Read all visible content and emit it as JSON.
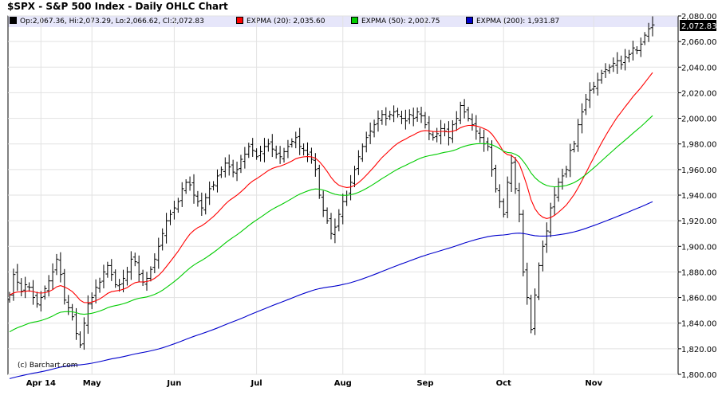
{
  "chart_data": {
    "type": "ohlc",
    "title": "$SPX - S&P 500 Index - Daily OHLC Chart",
    "source": "(c) Barchart.com",
    "ylim": [
      1800,
      2080
    ],
    "y_ticks": [
      "1,800.00",
      "1,820.00",
      "1,840.00",
      "1,860.00",
      "1,880.00",
      "1,900.00",
      "1,920.00",
      "1,940.00",
      "1,960.00",
      "1,980.00",
      "2,000.00",
      "2,020.00",
      "2,040.00",
      "2,060.00",
      "2,080.00"
    ],
    "y_tick_values": [
      1800,
      1820,
      1840,
      1860,
      1880,
      1900,
      1920,
      1940,
      1960,
      1980,
      2000,
      2020,
      2040,
      2060,
      2080
    ],
    "last_price": "2,072.83",
    "last_price_value": 2072.83,
    "x_months": [
      {
        "label": "Apr 14",
        "index": 8
      },
      {
        "label": "May",
        "index": 21
      },
      {
        "label": "Jun",
        "index": 42
      },
      {
        "label": "Jul",
        "index": 63
      },
      {
        "label": "Aug",
        "index": 85
      },
      {
        "label": "Sep",
        "index": 106
      },
      {
        "label": "Oct",
        "index": 126
      },
      {
        "label": "Nov",
        "index": 149
      }
    ],
    "legend": [
      {
        "label": "Op:2,067.36, Hi:2,073.29, Lo:2,066.62, Cl:2,072.83",
        "color": "#000000"
      },
      {
        "label": "EXPMA (20): 2,035.60",
        "color": "#ff0000"
      },
      {
        "label": "EXPMA (50): 2,002.75",
        "color": "#00cc00"
      },
      {
        "label": "EXPMA (200): 1,931.87",
        "color": "#0000cc"
      }
    ],
    "ohlc_close": [
      1862,
      1878,
      1872,
      1865,
      1870,
      1868,
      1860,
      1855,
      1860,
      1867,
      1873,
      1880,
      1890,
      1878,
      1858,
      1852,
      1845,
      1832,
      1823,
      1840,
      1855,
      1860,
      1868,
      1872,
      1880,
      1885,
      1878,
      1870,
      1870,
      1875,
      1880,
      1890,
      1888,
      1878,
      1872,
      1875,
      1882,
      1890,
      1900,
      1910,
      1920,
      1925,
      1930,
      1935,
      1945,
      1950,
      1948,
      1940,
      1935,
      1930,
      1938,
      1945,
      1948,
      1955,
      1960,
      1965,
      1962,
      1958,
      1960,
      1968,
      1972,
      1978,
      1975,
      1970,
      1974,
      1978,
      1980,
      1976,
      1972,
      1970,
      1974,
      1978,
      1982,
      1985,
      1978,
      1975,
      1972,
      1968,
      1960,
      1940,
      1928,
      1920,
      1910,
      1915,
      1925,
      1935,
      1940,
      1950,
      1960,
      1970,
      1978,
      1985,
      1990,
      1995,
      2000,
      2003,
      2000,
      2003,
      2005,
      2003,
      2000,
      1998,
      2003,
      2000,
      2005,
      2002,
      1995,
      1988,
      1985,
      1988,
      1992,
      1990,
      1985,
      1995,
      2000,
      2010,
      2005,
      2000,
      1995,
      1990,
      1985,
      1980,
      1978,
      1960,
      1945,
      1935,
      1925,
      1950,
      1965,
      1945,
      1925,
      1880,
      1860,
      1835,
      1862,
      1885,
      1900,
      1912,
      1930,
      1940,
      1950,
      1955,
      1960,
      1975,
      1980,
      1995,
      2005,
      2015,
      2022,
      2025,
      2030,
      2035,
      2038,
      2040,
      2043,
      2045,
      2042,
      2048,
      2050,
      2055,
      2053,
      2058,
      2065,
      2070,
      2073
    ],
    "series": [
      {
        "name": "EXPMA (20)",
        "color": "#ff0000",
        "last": 2035.6
      },
      {
        "name": "EXPMA (50)",
        "color": "#00cc00",
        "last": 2002.75
      },
      {
        "name": "EXPMA (200)",
        "color": "#0000cc",
        "last": 1931.87
      }
    ],
    "ema200_start": 1796
  }
}
